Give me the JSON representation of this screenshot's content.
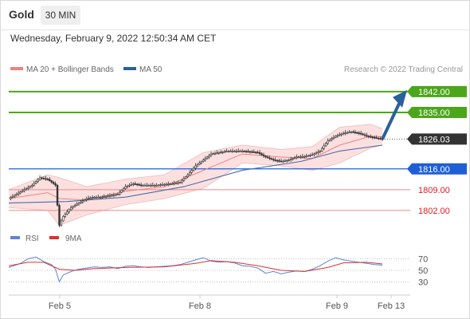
{
  "header": {
    "symbol": "Gold",
    "timeframe": "30 MIN"
  },
  "datetime": "Wednesday, February 9, 2022 12:50:34 AM CET",
  "copyright": "Research © 2022 Trading Central",
  "colors": {
    "resistance": "#4ca61a",
    "pivot": "#1f5fd6",
    "support": "#e88a8a",
    "support_text": "#d92020",
    "current": "#333333",
    "candle": "#333333",
    "ma20": "#f08080",
    "bollinger": "#fcdada",
    "ma50": "#4a6ea8",
    "arrow": "#2c5f9c",
    "rsi": "#5b84d9",
    "rsi_ma": "#e03030"
  },
  "chart_data": {
    "type": "candlestick",
    "instrument": "Gold",
    "timeframe": "30 MIN",
    "ylim": [
      1795,
      1846
    ],
    "x_ticks": [
      "Feb 5",
      "Feb 8",
      "Feb 9",
      "Feb 13"
    ],
    "legend": [
      {
        "name": "MA 20 + Bollinger Bands",
        "color": "#f08080"
      },
      {
        "name": "MA 50",
        "color": "#2c5f9c"
      }
    ],
    "levels": [
      {
        "label": "1842.00",
        "value": 1842.0,
        "kind": "resistance"
      },
      {
        "label": "1835.00",
        "value": 1835.0,
        "kind": "resistance"
      },
      {
        "label": "1826.03",
        "value": 1826.03,
        "kind": "current"
      },
      {
        "label": "1816.00",
        "value": 1816.0,
        "kind": "pivot"
      },
      {
        "label": "1809.00",
        "value": 1809.0,
        "kind": "support"
      },
      {
        "label": "1802.00",
        "value": 1802.0,
        "kind": "support"
      }
    ],
    "target_arrow": {
      "from": 1826.03,
      "to": 1842.0
    },
    "price_path": [
      [
        0,
        1806
      ],
      [
        4,
        1807.5
      ],
      [
        8,
        1809
      ],
      [
        12,
        1810.5
      ],
      [
        16,
        1813
      ],
      [
        20,
        1812.5
      ],
      [
        24,
        1810.5
      ],
      [
        26,
        1797
      ],
      [
        28,
        1800
      ],
      [
        32,
        1803
      ],
      [
        36,
        1804.5
      ],
      [
        40,
        1806
      ],
      [
        44,
        1806.5
      ],
      [
        48,
        1806.5
      ],
      [
        52,
        1807
      ],
      [
        56,
        1807.5
      ],
      [
        60,
        1810
      ],
      [
        64,
        1811
      ],
      [
        68,
        1810.5
      ],
      [
        72,
        1810.5
      ],
      [
        76,
        1810.5
      ],
      [
        80,
        1810.8
      ],
      [
        84,
        1811
      ],
      [
        88,
        1811.5
      ],
      [
        92,
        1814
      ],
      [
        96,
        1817
      ],
      [
        100,
        1819
      ],
      [
        104,
        1821
      ],
      [
        108,
        1821.5
      ],
      [
        112,
        1822
      ],
      [
        116,
        1822
      ],
      [
        120,
        1822
      ],
      [
        124,
        1821.8
      ],
      [
        128,
        1821.5
      ],
      [
        132,
        1820
      ],
      [
        136,
        1819
      ],
      [
        140,
        1818.5
      ],
      [
        144,
        1819
      ],
      [
        148,
        1820
      ],
      [
        152,
        1820.2
      ],
      [
        156,
        1820.8
      ],
      [
        160,
        1822
      ],
      [
        164,
        1825.5
      ],
      [
        168,
        1827
      ],
      [
        172,
        1828
      ],
      [
        176,
        1828.5
      ],
      [
        180,
        1828
      ],
      [
        184,
        1827
      ],
      [
        188,
        1826.5
      ],
      [
        192,
        1826
      ]
    ],
    "ma20": [
      [
        0,
        1806
      ],
      [
        20,
        1808
      ],
      [
        26,
        1806
      ],
      [
        40,
        1805.5
      ],
      [
        60,
        1808.5
      ],
      [
        80,
        1810
      ],
      [
        100,
        1815.5
      ],
      [
        120,
        1821
      ],
      [
        140,
        1820
      ],
      [
        156,
        1819.5
      ],
      [
        170,
        1824
      ],
      [
        186,
        1827
      ],
      [
        192,
        1826.8
      ]
    ],
    "bollinger_upper": [
      [
        0,
        1809
      ],
      [
        20,
        1814
      ],
      [
        26,
        1813
      ],
      [
        40,
        1810
      ],
      [
        60,
        1812.5
      ],
      [
        80,
        1814
      ],
      [
        100,
        1821.5
      ],
      [
        120,
        1824
      ],
      [
        140,
        1822.5
      ],
      [
        156,
        1823.5
      ],
      [
        170,
        1830
      ],
      [
        186,
        1831
      ],
      [
        192,
        1829.5
      ]
    ],
    "bollinger_lower": [
      [
        0,
        1803
      ],
      [
        20,
        1802
      ],
      [
        26,
        1797
      ],
      [
        40,
        1800.5
      ],
      [
        60,
        1804
      ],
      [
        80,
        1806
      ],
      [
        100,
        1809.5
      ],
      [
        120,
        1818
      ],
      [
        140,
        1817
      ],
      [
        156,
        1815.5
      ],
      [
        170,
        1818
      ],
      [
        186,
        1823
      ],
      [
        192,
        1824
      ]
    ],
    "ma50": [
      [
        0,
        1804.5
      ],
      [
        30,
        1805
      ],
      [
        60,
        1806.5
      ],
      [
        90,
        1810
      ],
      [
        120,
        1815.5
      ],
      [
        150,
        1818.5
      ],
      [
        170,
        1822
      ],
      [
        192,
        1824
      ]
    ],
    "rsi": {
      "legend": [
        "RSI",
        "9MA"
      ],
      "levels": [
        30,
        50,
        70
      ],
      "rsi_values": [
        [
          0,
          55
        ],
        [
          6,
          62
        ],
        [
          10,
          70
        ],
        [
          14,
          73
        ],
        [
          18,
          65
        ],
        [
          22,
          60
        ],
        [
          24,
          52
        ],
        [
          26,
          30
        ],
        [
          28,
          42
        ],
        [
          32,
          48
        ],
        [
          36,
          52
        ],
        [
          40,
          54
        ],
        [
          44,
          56
        ],
        [
          48,
          55
        ],
        [
          52,
          56
        ],
        [
          56,
          53
        ],
        [
          60,
          57
        ],
        [
          64,
          58
        ],
        [
          68,
          56
        ],
        [
          72,
          55
        ],
        [
          76,
          56
        ],
        [
          80,
          57
        ],
        [
          84,
          58
        ],
        [
          88,
          60
        ],
        [
          92,
          64
        ],
        [
          96,
          68
        ],
        [
          100,
          72
        ],
        [
          104,
          66
        ],
        [
          108,
          64
        ],
        [
          112,
          65
        ],
        [
          116,
          63
        ],
        [
          120,
          58
        ],
        [
          124,
          57
        ],
        [
          128,
          54
        ],
        [
          132,
          45
        ],
        [
          136,
          48
        ],
        [
          140,
          44
        ],
        [
          144,
          47
        ],
        [
          148,
          49
        ],
        [
          152,
          48
        ],
        [
          156,
          52
        ],
        [
          160,
          58
        ],
        [
          164,
          66
        ],
        [
          168,
          72
        ],
        [
          172,
          68
        ],
        [
          176,
          66
        ],
        [
          180,
          64
        ],
        [
          184,
          62
        ],
        [
          188,
          60
        ],
        [
          192,
          59
        ]
      ],
      "ma_values": [
        [
          0,
          58
        ],
        [
          10,
          64
        ],
        [
          18,
          64
        ],
        [
          26,
          52
        ],
        [
          34,
          50
        ],
        [
          44,
          53
        ],
        [
          60,
          55
        ],
        [
          80,
          56
        ],
        [
          96,
          62
        ],
        [
          104,
          67
        ],
        [
          116,
          64
        ],
        [
          128,
          58
        ],
        [
          140,
          50
        ],
        [
          152,
          48
        ],
        [
          164,
          55
        ],
        [
          172,
          63
        ],
        [
          184,
          64
        ],
        [
          192,
          61
        ]
      ]
    }
  }
}
